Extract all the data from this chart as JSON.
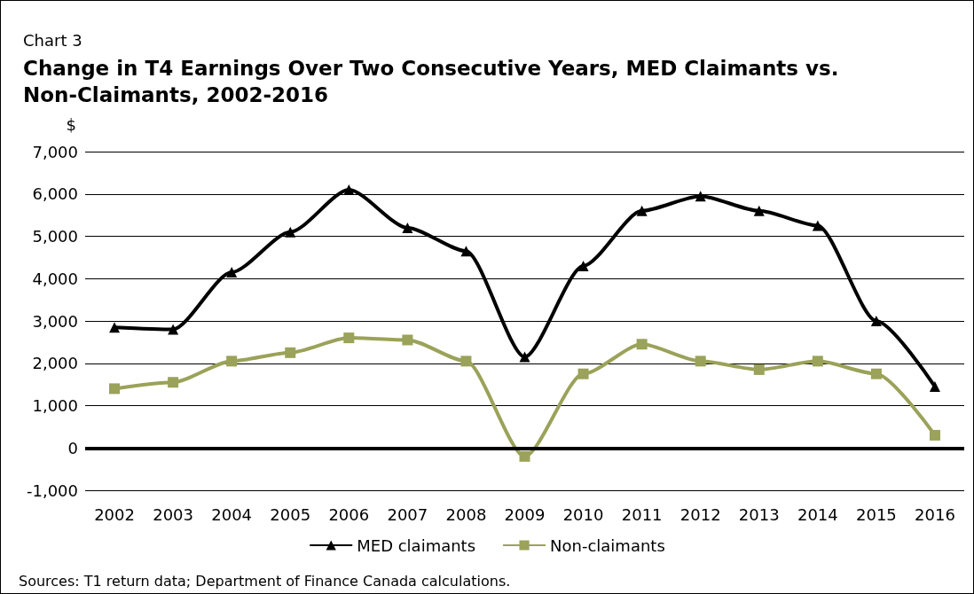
{
  "chart_data": {
    "type": "line",
    "subtitle": "Chart 3",
    "title": "Change in T4 Earnings Over Two Consecutive Years, MED Claimants vs. Non-Claimants, 2002-2016",
    "ylabel": "$",
    "categories": [
      "2002",
      "2003",
      "2004",
      "2005",
      "2006",
      "2007",
      "2008",
      "2009",
      "2010",
      "2011",
      "2012",
      "2013",
      "2014",
      "2015",
      "2016"
    ],
    "series": [
      {
        "name": "MED claimants",
        "color": "#000000",
        "marker": "triangle",
        "values": [
          2850,
          2800,
          4150,
          5100,
          6100,
          5200,
          4650,
          2150,
          4300,
          5600,
          5950,
          5600,
          5250,
          3000,
          1450
        ]
      },
      {
        "name": "Non-claimants",
        "color": "#9ba259",
        "marker": "square",
        "values": [
          1400,
          1550,
          2050,
          2250,
          2600,
          2550,
          2050,
          -200,
          1750,
          2450,
          2050,
          1850,
          2050,
          1750,
          300
        ]
      }
    ],
    "ylim": [
      -1000,
      7000
    ],
    "yticks": [
      {
        "value": -1000,
        "label": "-1,000"
      },
      0,
      {
        "value": 1000,
        "label": "1,000"
      },
      {
        "value": 2000,
        "label": "2,000"
      },
      {
        "value": 3000,
        "label": "3,000"
      },
      {
        "value": 4000,
        "label": "4,000"
      },
      {
        "value": 5000,
        "label": "5,000"
      },
      {
        "value": 6000,
        "label": "6,000"
      },
      {
        "value": 7000,
        "label": "7,000"
      }
    ],
    "ref_lines": [
      {
        "axis": "y",
        "value": 0,
        "color": "#000000"
      }
    ],
    "grid": "y",
    "legend": "bottom",
    "annotations": [
      "Sources: T1 return data; Department of Finance Canada calculations."
    ]
  }
}
